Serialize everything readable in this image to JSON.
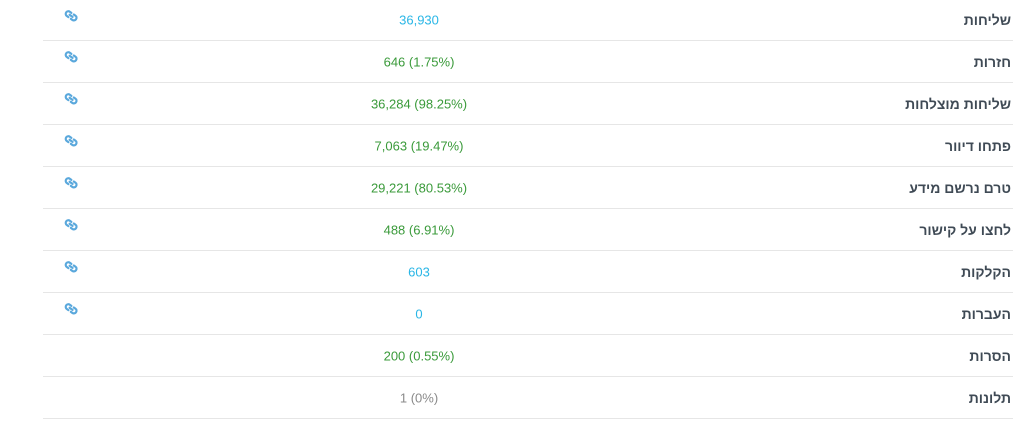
{
  "accent_color": "#29b6e6",
  "success_color": "#3a9a3a",
  "muted_color": "#8a8a8a",
  "rows": [
    {
      "label": "שליחות",
      "value": "36,930",
      "tone": "blue",
      "has_link": true,
      "icon": "link-icon"
    },
    {
      "label": "חזרות",
      "value": "646 (1.75%)",
      "tone": "green",
      "has_link": true,
      "icon": "link-icon"
    },
    {
      "label": "שליחות מוצלחות",
      "value": "36,284 (98.25%)",
      "tone": "green",
      "has_link": true,
      "icon": "link-icon"
    },
    {
      "label": "פתחו דיוור",
      "value": "7,063 (19.47%)",
      "tone": "green",
      "has_link": true,
      "icon": "link-icon"
    },
    {
      "label": "טרם נרשם מידע",
      "value": "29,221 (80.53%)",
      "tone": "green",
      "has_link": true,
      "icon": "link-icon"
    },
    {
      "label": "לחצו על קישור",
      "value": "488 (6.91%)",
      "tone": "green",
      "has_link": true,
      "icon": "link-icon"
    },
    {
      "label": "הקלקות",
      "value": "603",
      "tone": "blue",
      "has_link": true,
      "icon": "link-icon"
    },
    {
      "label": "העברות",
      "value": "0",
      "tone": "blue",
      "has_link": true,
      "icon": "link-icon"
    },
    {
      "label": "הסרות",
      "value": "200 (0.55%)",
      "tone": "green",
      "has_link": false
    },
    {
      "label": "תלונות",
      "value": "1 (0%)",
      "tone": "gray",
      "has_link": false
    }
  ]
}
